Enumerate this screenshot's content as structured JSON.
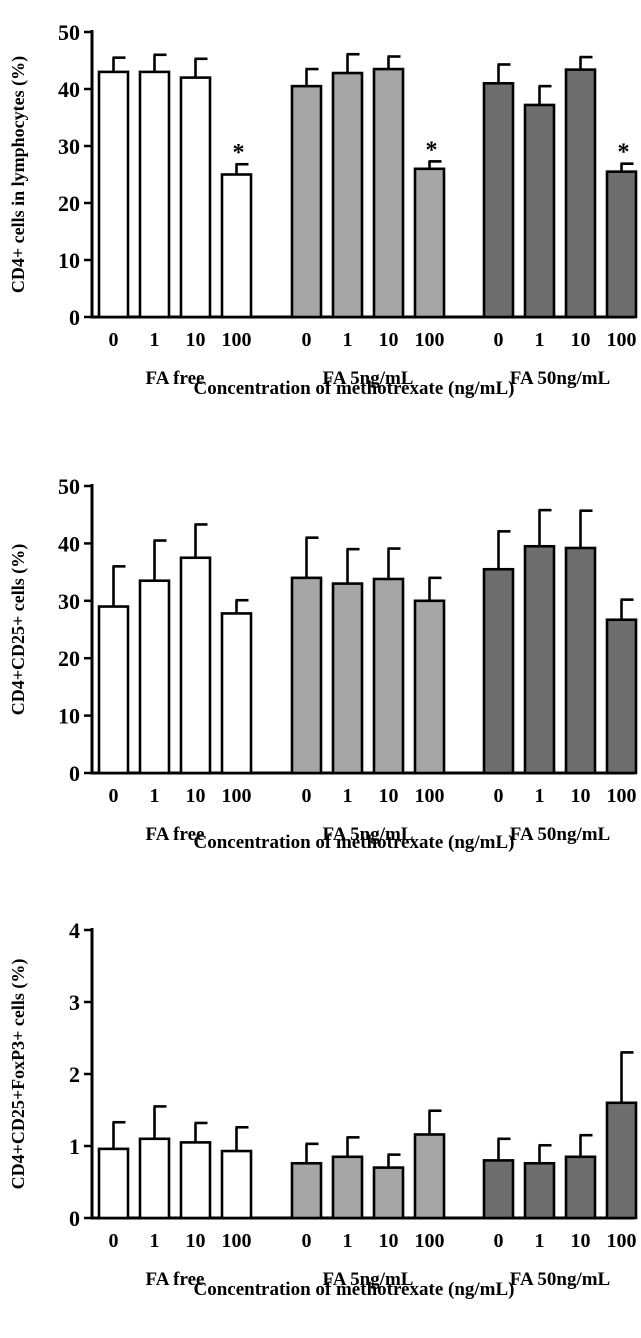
{
  "colors": {
    "FA free": "#ffffff",
    "FA 5ng/mL": "#a6a6a6",
    "FA 50ng/mL": "#6e6e6e",
    "axis": "#000000"
  },
  "chart_data": [
    {
      "type": "bar",
      "ylabel": "CD4+ cells in lymphocytes (%)",
      "xlabel": "Concentration of methotrexate (ng/mL)",
      "ylim": [
        0,
        50
      ],
      "yticks": [
        "0",
        "10",
        "20",
        "30",
        "40",
        "50"
      ],
      "grid": false,
      "groups": [
        {
          "name": "FA free",
          "categories": [
            "0",
            "1",
            "10",
            "100"
          ],
          "values": [
            43,
            43,
            42,
            25
          ],
          "errors": [
            2.5,
            3,
            3.3,
            1.8
          ],
          "significant": [
            "",
            "",
            "",
            "*"
          ]
        },
        {
          "name": "FA 5ng/mL",
          "categories": [
            "0",
            "1",
            "10",
            "100"
          ],
          "values": [
            40.5,
            42.8,
            43.5,
            26
          ],
          "errors": [
            3,
            3.3,
            2.2,
            1.3
          ],
          "significant": [
            "",
            "",
            "",
            "*"
          ]
        },
        {
          "name": "FA 50ng/mL",
          "categories": [
            "0",
            "1",
            "10",
            "100"
          ],
          "values": [
            41,
            37.2,
            43.4,
            25.5
          ],
          "errors": [
            3.3,
            3.3,
            2.2,
            1.4
          ],
          "significant": [
            "",
            "",
            "",
            "*"
          ]
        }
      ]
    },
    {
      "type": "bar",
      "ylabel": "CD4+CD25+ cells (%)",
      "xlabel": "Concentration of methotrexate (ng/mL)",
      "ylim": [
        0,
        50
      ],
      "yticks": [
        "0",
        "10",
        "20",
        "30",
        "40",
        "50"
      ],
      "grid": false,
      "groups": [
        {
          "name": "FA free",
          "categories": [
            "0",
            "1",
            "10",
            "100"
          ],
          "values": [
            29,
            33.5,
            37.5,
            27.8
          ],
          "errors": [
            7,
            7,
            5.8,
            2.3
          ],
          "significant": [
            "",
            "",
            "",
            ""
          ]
        },
        {
          "name": "FA 5ng/mL",
          "categories": [
            "0",
            "1",
            "10",
            "100"
          ],
          "values": [
            34,
            33,
            33.8,
            30
          ],
          "errors": [
            7,
            6,
            5.3,
            4
          ],
          "significant": [
            "",
            "",
            "",
            ""
          ]
        },
        {
          "name": "FA 50ng/mL",
          "categories": [
            "0",
            "1",
            "10",
            "100"
          ],
          "values": [
            35.5,
            39.5,
            39.2,
            26.7
          ],
          "errors": [
            6.6,
            6.3,
            6.5,
            3.5
          ],
          "significant": [
            "",
            "",
            "",
            ""
          ]
        }
      ]
    },
    {
      "type": "bar",
      "ylabel": "CD4+CD25+FoxP3+ cells (%)",
      "xlabel": "Concentration of methotrexate (ng/mL)",
      "ylim": [
        0,
        4
      ],
      "yticks": [
        "0",
        "1",
        "2",
        "3",
        "4"
      ],
      "grid": false,
      "groups": [
        {
          "name": "FA free",
          "categories": [
            "0",
            "1",
            "10",
            "100"
          ],
          "values": [
            0.96,
            1.1,
            1.05,
            0.93
          ],
          "errors": [
            0.37,
            0.45,
            0.27,
            0.33
          ],
          "significant": [
            "",
            "",
            "",
            ""
          ]
        },
        {
          "name": "FA 5ng/mL",
          "categories": [
            "0",
            "1",
            "10",
            "100"
          ],
          "values": [
            0.76,
            0.85,
            0.7,
            1.16
          ],
          "errors": [
            0.27,
            0.27,
            0.18,
            0.33
          ],
          "significant": [
            "",
            "",
            "",
            ""
          ]
        },
        {
          "name": "FA 50ng/mL",
          "categories": [
            "0",
            "1",
            "10",
            "100"
          ],
          "values": [
            0.8,
            0.76,
            0.85,
            1.6
          ],
          "errors": [
            0.3,
            0.25,
            0.3,
            0.7
          ],
          "significant": [
            "",
            "",
            "",
            ""
          ]
        }
      ]
    }
  ]
}
